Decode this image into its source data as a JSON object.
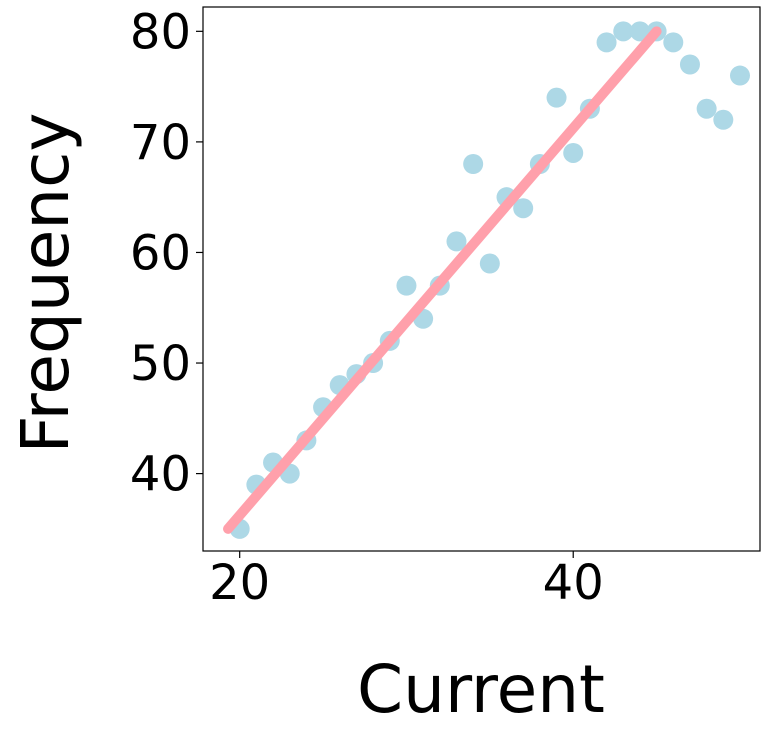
{
  "chart_data": {
    "type": "scatter",
    "title": "",
    "xlabel": "Current",
    "ylabel": "Frequency",
    "xlim": [
      17.8,
      51.2
    ],
    "ylim": [
      33,
      82.2
    ],
    "xticks": [
      20,
      40
    ],
    "yticks": [
      40,
      50,
      60,
      70,
      80
    ],
    "xtick_labels": [
      "20",
      "40"
    ],
    "ytick_labels": [
      "40",
      "50",
      "60",
      "70",
      "80"
    ],
    "grid": false,
    "legend": "none",
    "points": {
      "color": "#add8e6",
      "x": [
        20,
        21,
        22,
        23,
        24,
        25,
        26,
        27,
        28,
        29,
        30,
        31,
        32,
        33,
        34,
        35,
        36,
        37,
        38,
        39,
        40,
        41,
        42,
        43,
        44,
        45,
        46,
        47,
        48,
        49,
        50
      ],
      "y": [
        35,
        39,
        41,
        40,
        43,
        46,
        48,
        49,
        50,
        52,
        57,
        54,
        57,
        61,
        68,
        59,
        65,
        64,
        68,
        74,
        69,
        73,
        79,
        80,
        80,
        80,
        79,
        77,
        73,
        72,
        76
      ]
    },
    "trend_line": {
      "color": "#ffa0ab",
      "x": [
        19.3,
        45
      ],
      "y": [
        35,
        80
      ]
    }
  }
}
